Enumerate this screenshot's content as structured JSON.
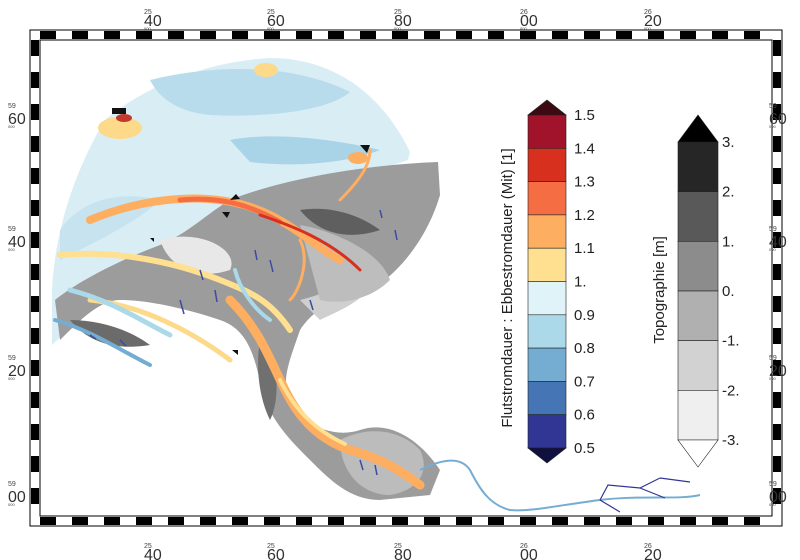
{
  "frame": {
    "top_ticks": [
      {
        "sup": "25",
        "main": "40"
      },
      {
        "sup": "25",
        "main": "60"
      },
      {
        "sup": "25",
        "main": "80"
      },
      {
        "sup": "26",
        "main": "00"
      },
      {
        "sup": "26",
        "main": "20"
      }
    ],
    "side_ticks": [
      {
        "sup": "59",
        "main": "60"
      },
      {
        "sup": "59",
        "main": "40"
      },
      {
        "sup": "59",
        "main": "20"
      },
      {
        "sup": "59",
        "main": "00"
      }
    ],
    "sub_mark": "000"
  },
  "ratio_legend": {
    "title": "Flutstromdauer : Ebbestromdauer (Mit) [1]",
    "labels": [
      "1.5",
      "1.4",
      "1.3",
      "1.2",
      "1.1",
      "1.",
      "0.9",
      "0.8",
      "0.7",
      "0.6",
      "0.5"
    ],
    "colors": [
      "#a0132a",
      "#d7301f",
      "#f46d43",
      "#fdae61",
      "#fee090",
      "#e0f3f8",
      "#abd9e9",
      "#74add1",
      "#4575b4",
      "#313695"
    ],
    "over_color": "#3d0a12",
    "under_color": "#0f0f40"
  },
  "topo_legend": {
    "title": "Topographie [m]",
    "labels": [
      "3.",
      "2.",
      "1.",
      "0.",
      "-1.",
      "-2.",
      "-3."
    ],
    "colors": [
      "#262626",
      "#595959",
      "#8c8c8c",
      "#b0b0b0",
      "#d2d2d2",
      "#efefef"
    ],
    "over_color": "#000000",
    "under_color": "#ffffff"
  }
}
